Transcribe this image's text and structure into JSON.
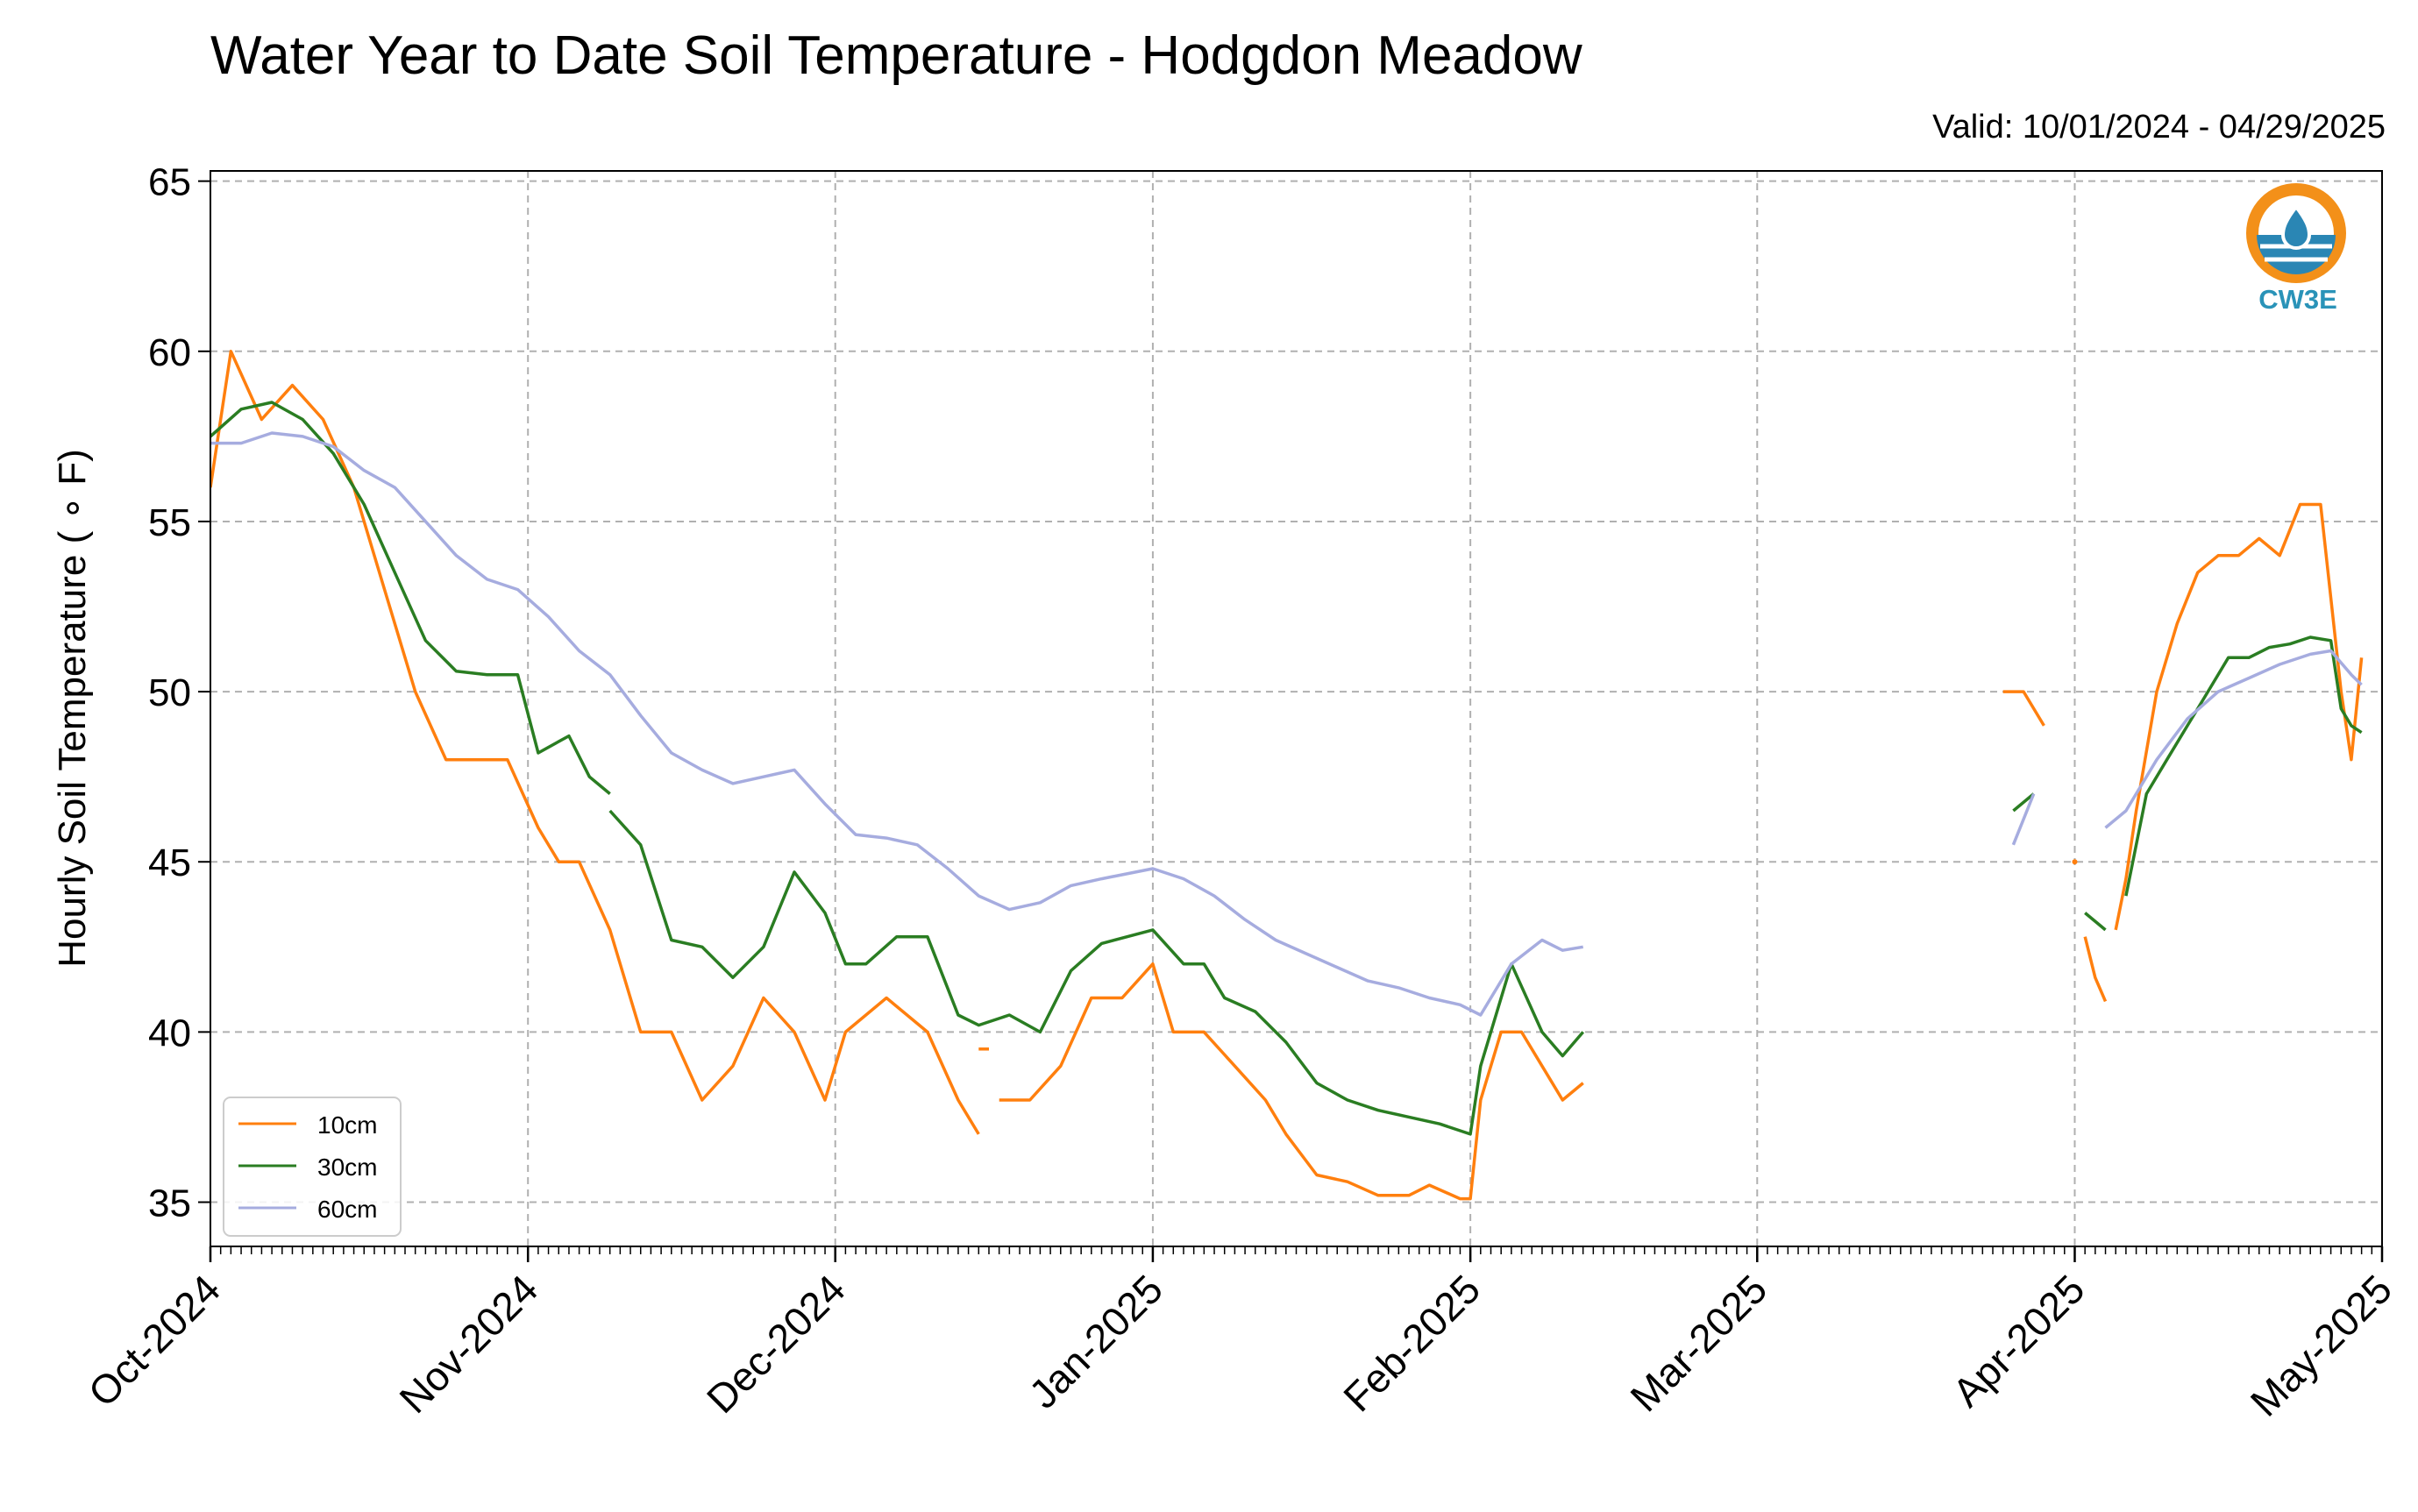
{
  "chart_data": {
    "type": "line",
    "title": "Water Year to Date Soil Temperature - Hodgdon Meadow",
    "subtitle": "Valid: 10/01/2024 - 04/29/2025",
    "xlabel": "",
    "ylabel": "Hourly Soil Temperature ( ∘ F)",
    "xlim": [
      "2024-10-01",
      "2025-05-01"
    ],
    "ylim": [
      33.7,
      65.3
    ],
    "yticks": [
      35,
      40,
      45,
      50,
      55,
      60,
      65
    ],
    "xticks": [
      {
        "date": "2024-10-01",
        "label": "Oct-2024"
      },
      {
        "date": "2024-11-01",
        "label": "Nov-2024"
      },
      {
        "date": "2024-12-01",
        "label": "Dec-2024"
      },
      {
        "date": "2025-01-01",
        "label": "Jan-2025"
      },
      {
        "date": "2025-02-01",
        "label": "Feb-2025"
      },
      {
        "date": "2025-03-01",
        "label": "Mar-2025"
      },
      {
        "date": "2025-04-01",
        "label": "Apr-2025"
      },
      {
        "date": "2025-05-01",
        "label": "May-2025"
      }
    ],
    "grid": true,
    "legend_position": "lower-left",
    "series": [
      {
        "name": "10cm",
        "color": "#ff7f0e",
        "segments": [
          [
            [
              "2024-10-01",
              56
            ],
            [
              "2024-10-03",
              60
            ],
            [
              "2024-10-06",
              58
            ],
            [
              "2024-10-09",
              59
            ],
            [
              "2024-10-12",
              58
            ],
            [
              "2024-10-15",
              56
            ],
            [
              "2024-10-18",
              53
            ],
            [
              "2024-10-21",
              50
            ],
            [
              "2024-10-24",
              48
            ],
            [
              "2024-10-27",
              48
            ],
            [
              "2024-10-30",
              48
            ],
            [
              "2024-11-02",
              46
            ],
            [
              "2024-11-04",
              45
            ],
            [
              "2024-11-06",
              45
            ],
            [
              "2024-11-09",
              43
            ],
            [
              "2024-11-12",
              40
            ],
            [
              "2024-11-15",
              40
            ],
            [
              "2024-11-18",
              38
            ],
            [
              "2024-11-21",
              39
            ],
            [
              "2024-11-24",
              41
            ],
            [
              "2024-11-27",
              40
            ],
            [
              "2024-11-30",
              38
            ],
            [
              "2024-12-02",
              40
            ],
            [
              "2024-12-06",
              41
            ],
            [
              "2024-12-10",
              40
            ],
            [
              "2024-12-13",
              38
            ],
            [
              "2024-12-15",
              37
            ]
          ],
          [
            [
              "2024-12-15",
              39.5
            ],
            [
              "2024-12-16",
              39.5
            ]
          ],
          [
            [
              "2024-12-17",
              38
            ],
            [
              "2024-12-20",
              38
            ],
            [
              "2024-12-23",
              39
            ],
            [
              "2024-12-26",
              41
            ],
            [
              "2024-12-29",
              41
            ],
            [
              "2025-01-01",
              42
            ],
            [
              "2025-01-03",
              40
            ],
            [
              "2025-01-06",
              40
            ],
            [
              "2025-01-09",
              39
            ],
            [
              "2025-01-12",
              38
            ],
            [
              "2025-01-14",
              37
            ],
            [
              "2025-01-17",
              35.8
            ],
            [
              "2025-01-20",
              35.6
            ],
            [
              "2025-01-23",
              35.2
            ],
            [
              "2025-01-26",
              35.2
            ],
            [
              "2025-01-28",
              35.5
            ],
            [
              "2025-01-31",
              35.1
            ],
            [
              "2025-02-01",
              35.1
            ],
            [
              "2025-02-02",
              38
            ],
            [
              "2025-02-04",
              40
            ],
            [
              "2025-02-06",
              40
            ],
            [
              "2025-02-08",
              39
            ],
            [
              "2025-02-10",
              38
            ],
            [
              "2025-02-12",
              38.5
            ]
          ],
          [
            [
              "2025-03-25",
              50
            ],
            [
              "2025-03-27",
              50
            ],
            [
              "2025-03-29",
              49
            ]
          ],
          [
            [
              "2025-04-01",
              45
            ]
          ],
          [
            [
              "2025-04-02",
              42.8
            ],
            [
              "2025-04-03",
              41.6
            ],
            [
              "2025-04-04",
              40.9
            ]
          ],
          [
            [
              "2025-04-05",
              43
            ],
            [
              "2025-04-06",
              44.5
            ],
            [
              "2025-04-07",
              46.5
            ],
            [
              "2025-04-09",
              50
            ],
            [
              "2025-04-11",
              52
            ],
            [
              "2025-04-13",
              53.5
            ],
            [
              "2025-04-15",
              54
            ],
            [
              "2025-04-17",
              54
            ],
            [
              "2025-04-19",
              54.5
            ],
            [
              "2025-04-21",
              54
            ],
            [
              "2025-04-23",
              55.5
            ],
            [
              "2025-04-25",
              55.5
            ],
            [
              "2025-04-27",
              50
            ],
            [
              "2025-04-28",
              48
            ],
            [
              "2025-04-29",
              51
            ]
          ]
        ]
      },
      {
        "name": "30cm",
        "color": "#2a7d22",
        "segments": [
          [
            [
              "2024-10-01",
              57.5
            ],
            [
              "2024-10-04",
              58.3
            ],
            [
              "2024-10-07",
              58.5
            ],
            [
              "2024-10-10",
              58
            ],
            [
              "2024-10-13",
              57
            ],
            [
              "2024-10-16",
              55.5
            ],
            [
              "2024-10-19",
              53.5
            ],
            [
              "2024-10-22",
              51.5
            ],
            [
              "2024-10-25",
              50.6
            ],
            [
              "2024-10-28",
              50.5
            ],
            [
              "2024-10-31",
              50.5
            ],
            [
              "2024-11-02",
              48.2
            ],
            [
              "2024-11-05",
              48.7
            ],
            [
              "2024-11-07",
              47.5
            ],
            [
              "2024-11-09",
              47
            ]
          ],
          [
            [
              "2024-11-09",
              46.5
            ],
            [
              "2024-11-12",
              45.5
            ],
            [
              "2024-11-15",
              42.7
            ],
            [
              "2024-11-18",
              42.5
            ],
            [
              "2024-11-21",
              41.6
            ],
            [
              "2024-11-24",
              42.5
            ],
            [
              "2024-11-27",
              44.7
            ],
            [
              "2024-11-30",
              43.5
            ],
            [
              "2024-12-02",
              42
            ],
            [
              "2024-12-04",
              42
            ],
            [
              "2024-12-07",
              42.8
            ],
            [
              "2024-12-10",
              42.8
            ],
            [
              "2024-12-13",
              40.5
            ],
            [
              "2024-12-15",
              40.2
            ],
            [
              "2024-12-18",
              40.5
            ],
            [
              "2024-12-21",
              40
            ],
            [
              "2024-12-24",
              41.8
            ],
            [
              "2024-12-27",
              42.6
            ],
            [
              "2025-01-01",
              43
            ],
            [
              "2025-01-04",
              42
            ],
            [
              "2025-01-06",
              42
            ],
            [
              "2025-01-08",
              41
            ],
            [
              "2025-01-11",
              40.6
            ],
            [
              "2025-01-14",
              39.7
            ],
            [
              "2025-01-17",
              38.5
            ],
            [
              "2025-01-20",
              38
            ],
            [
              "2025-01-23",
              37.7
            ],
            [
              "2025-01-26",
              37.5
            ],
            [
              "2025-01-29",
              37.3
            ],
            [
              "2025-02-01",
              37
            ],
            [
              "2025-02-02",
              39
            ],
            [
              "2025-02-05",
              42
            ],
            [
              "2025-02-08",
              40
            ],
            [
              "2025-02-10",
              39.3
            ],
            [
              "2025-02-12",
              40
            ]
          ],
          [
            [
              "2025-03-26",
              46.5
            ],
            [
              "2025-03-28",
              47
            ]
          ],
          [
            [
              "2025-04-02",
              43.5
            ],
            [
              "2025-04-04",
              43
            ]
          ],
          [
            [
              "2025-04-06",
              44
            ],
            [
              "2025-04-08",
              47
            ],
            [
              "2025-04-10",
              48
            ],
            [
              "2025-04-12",
              49
            ],
            [
              "2025-04-14",
              50
            ],
            [
              "2025-04-16",
              51
            ],
            [
              "2025-04-18",
              51
            ],
            [
              "2025-04-20",
              51.3
            ],
            [
              "2025-04-22",
              51.4
            ],
            [
              "2025-04-24",
              51.6
            ],
            [
              "2025-04-26",
              51.5
            ],
            [
              "2025-04-27",
              49.5
            ],
            [
              "2025-04-28",
              49
            ],
            [
              "2025-04-29",
              48.8
            ]
          ]
        ]
      },
      {
        "name": "60cm",
        "color": "#a6acdf",
        "segments": [
          [
            [
              "2024-10-01",
              57.3
            ],
            [
              "2024-10-04",
              57.3
            ],
            [
              "2024-10-07",
              57.6
            ],
            [
              "2024-10-10",
              57.5
            ],
            [
              "2024-10-13",
              57.2
            ],
            [
              "2024-10-16",
              56.5
            ],
            [
              "2024-10-19",
              56
            ],
            [
              "2024-10-22",
              55
            ],
            [
              "2024-10-25",
              54
            ],
            [
              "2024-10-28",
              53.3
            ],
            [
              "2024-10-31",
              53
            ],
            [
              "2024-11-03",
              52.2
            ],
            [
              "2024-11-06",
              51.2
            ],
            [
              "2024-11-09",
              50.5
            ],
            [
              "2024-11-12",
              49.3
            ],
            [
              "2024-11-15",
              48.2
            ],
            [
              "2024-11-18",
              47.7
            ],
            [
              "2024-11-21",
              47.3
            ],
            [
              "2024-11-24",
              47.5
            ],
            [
              "2024-11-27",
              47.7
            ],
            [
              "2024-11-30",
              46.7
            ],
            [
              "2024-12-03",
              45.8
            ],
            [
              "2024-12-06",
              45.7
            ],
            [
              "2024-12-09",
              45.5
            ],
            [
              "2024-12-12",
              44.8
            ],
            [
              "2024-12-15",
              44
            ],
            [
              "2024-12-18",
              43.6
            ],
            [
              "2024-12-21",
              43.8
            ],
            [
              "2024-12-24",
              44.3
            ],
            [
              "2024-12-27",
              44.5
            ],
            [
              "2025-01-01",
              44.8
            ],
            [
              "2025-01-04",
              44.5
            ],
            [
              "2025-01-07",
              44
            ],
            [
              "2025-01-10",
              43.3
            ],
            [
              "2025-01-13",
              42.7
            ],
            [
              "2025-01-16",
              42.3
            ],
            [
              "2025-01-19",
              41.9
            ],
            [
              "2025-01-22",
              41.5
            ],
            [
              "2025-01-25",
              41.3
            ],
            [
              "2025-01-28",
              41
            ],
            [
              "2025-01-31",
              40.8
            ],
            [
              "2025-02-02",
              40.5
            ],
            [
              "2025-02-05",
              42
            ],
            [
              "2025-02-08",
              42.7
            ],
            [
              "2025-02-10",
              42.4
            ],
            [
              "2025-02-12",
              42.5
            ]
          ],
          [
            [
              "2025-03-26",
              45.5
            ],
            [
              "2025-03-28",
              47
            ]
          ],
          [
            [
              "2025-04-04",
              46
            ],
            [
              "2025-04-06",
              46.5
            ],
            [
              "2025-04-09",
              48
            ],
            [
              "2025-04-12",
              49.2
            ],
            [
              "2025-04-15",
              50
            ],
            [
              "2025-04-18",
              50.4
            ],
            [
              "2025-04-21",
              50.8
            ],
            [
              "2025-04-24",
              51.1
            ],
            [
              "2025-04-26",
              51.2
            ],
            [
              "2025-04-28",
              50.5
            ],
            [
              "2025-04-29",
              50.2
            ]
          ]
        ]
      }
    ]
  },
  "logo": {
    "text": "CW3E",
    "ring_color": "#f39019",
    "water_color": "#2a86b4",
    "text_color": "#2a93b8"
  }
}
